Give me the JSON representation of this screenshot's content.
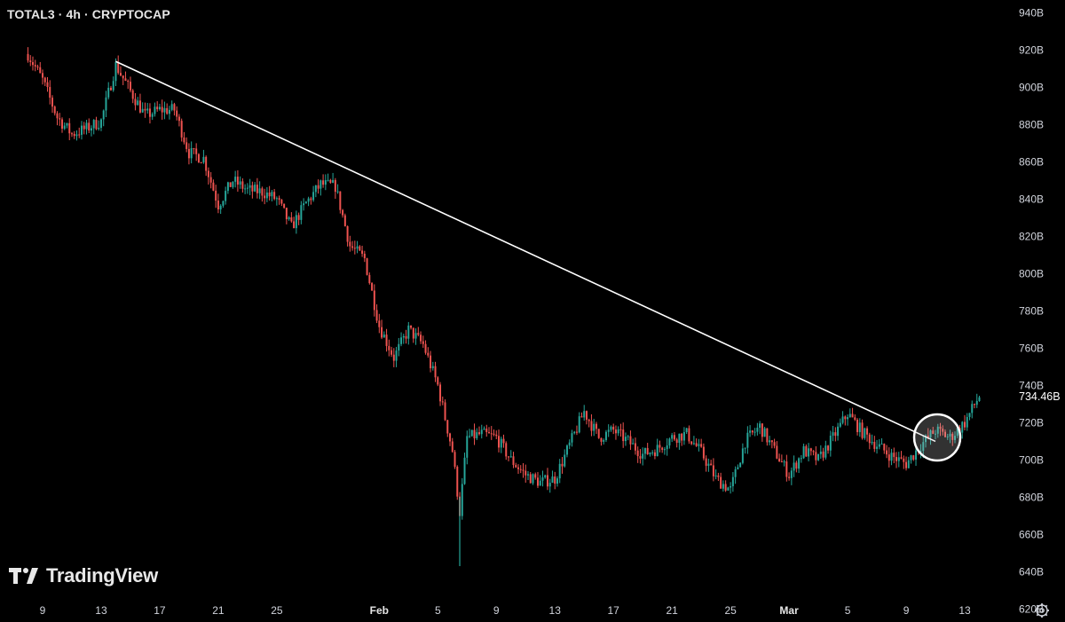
{
  "header": {
    "title": "TOTAL3 · 4h · CRYPTOCAP"
  },
  "brand": {
    "name": "TradingView"
  },
  "icons": {
    "brand": "tradingview-logo-icon",
    "settings": "gear-icon"
  },
  "colors": {
    "background": "#000000",
    "up": "#26a69a",
    "down": "#ef5350",
    "trendline": "#ffffff",
    "axis_text": "#d1d4dc"
  },
  "chart_data": {
    "type": "candlestick",
    "title": "TOTAL3 · 4h · CRYPTOCAP",
    "yticks": [
      "620B",
      "640B",
      "660B",
      "680B",
      "700B",
      "720B",
      "740B",
      "760B",
      "780B",
      "800B",
      "820B",
      "840B",
      "860B",
      "880B",
      "900B",
      "920B",
      "940B"
    ],
    "ytick_values": [
      620,
      640,
      660,
      680,
      700,
      720,
      740,
      760,
      780,
      800,
      820,
      840,
      860,
      880,
      900,
      920,
      940
    ],
    "ylim": [
      613,
      947
    ],
    "y_unit": "B",
    "xticks": [
      {
        "label": "9",
        "month": "Jan",
        "day": 9
      },
      {
        "label": "13",
        "month": "Jan",
        "day": 13
      },
      {
        "label": "17",
        "month": "Jan",
        "day": 17
      },
      {
        "label": "21",
        "month": "Jan",
        "day": 21
      },
      {
        "label": "25",
        "month": "Jan",
        "day": 25
      },
      {
        "label": "Feb",
        "month": "Feb",
        "day": 1
      },
      {
        "label": "5",
        "month": "Feb",
        "day": 5
      },
      {
        "label": "9",
        "month": "Feb",
        "day": 9
      },
      {
        "label": "13",
        "month": "Feb",
        "day": 13
      },
      {
        "label": "17",
        "month": "Feb",
        "day": 17
      },
      {
        "label": "21",
        "month": "Feb",
        "day": 21
      },
      {
        "label": "25",
        "month": "Feb",
        "day": 25
      },
      {
        "label": "Mar",
        "month": "Mar",
        "day": 1
      },
      {
        "label": "5",
        "month": "Mar",
        "day": 5
      },
      {
        "label": "9",
        "month": "Mar",
        "day": 9
      },
      {
        "label": "13",
        "month": "Mar",
        "day": 13
      }
    ],
    "last_price": {
      "label": "734.46B",
      "value": 734.46
    },
    "close_path": [
      {
        "date": "Jan 8",
        "value": 918
      },
      {
        "date": "Jan 9",
        "value": 904
      },
      {
        "date": "Jan 10",
        "value": 884
      },
      {
        "date": "Jan 11",
        "value": 875
      },
      {
        "date": "Jan 12",
        "value": 878
      },
      {
        "date": "Jan 13",
        "value": 882
      },
      {
        "date": "Jan 14",
        "value": 912
      },
      {
        "date": "Jan 15",
        "value": 898
      },
      {
        "date": "Jan 16",
        "value": 885
      },
      {
        "date": "Jan 17",
        "value": 888
      },
      {
        "date": "Jan 18",
        "value": 888
      },
      {
        "date": "Jan 19",
        "value": 865
      },
      {
        "date": "Jan 20",
        "value": 862
      },
      {
        "date": "Jan 21",
        "value": 837
      },
      {
        "date": "Jan 22",
        "value": 850
      },
      {
        "date": "Jan 23",
        "value": 845
      },
      {
        "date": "Jan 24",
        "value": 844
      },
      {
        "date": "Jan 25",
        "value": 840
      },
      {
        "date": "Jan 26",
        "value": 825
      },
      {
        "date": "Jan 27",
        "value": 838
      },
      {
        "date": "Jan 28",
        "value": 848
      },
      {
        "date": "Jan 29",
        "value": 847
      },
      {
        "date": "Jan 30",
        "value": 815
      },
      {
        "date": "Jan 31",
        "value": 808
      },
      {
        "date": "Feb 1",
        "value": 772
      },
      {
        "date": "Feb 2",
        "value": 755
      },
      {
        "date": "Feb 3",
        "value": 770
      },
      {
        "date": "Feb 4",
        "value": 762
      },
      {
        "date": "Feb 5",
        "value": 740
      },
      {
        "date": "Feb 6",
        "value": 705
      },
      {
        "date": "Feb 6.5",
        "value": 672
      },
      {
        "date": "Feb 7",
        "value": 712
      },
      {
        "date": "Feb 8",
        "value": 714
      },
      {
        "date": "Feb 9",
        "value": 712
      },
      {
        "date": "Feb 10",
        "value": 700
      },
      {
        "date": "Feb 11",
        "value": 692
      },
      {
        "date": "Feb 12",
        "value": 688
      },
      {
        "date": "Feb 13",
        "value": 690
      },
      {
        "date": "Feb 14",
        "value": 708
      },
      {
        "date": "Feb 15",
        "value": 726
      },
      {
        "date": "Feb 16",
        "value": 712
      },
      {
        "date": "Feb 17",
        "value": 716
      },
      {
        "date": "Feb 18",
        "value": 710
      },
      {
        "date": "Feb 19",
        "value": 703
      },
      {
        "date": "Feb 20",
        "value": 706
      },
      {
        "date": "Feb 21",
        "value": 712
      },
      {
        "date": "Feb 22",
        "value": 714
      },
      {
        "date": "Feb 23",
        "value": 704
      },
      {
        "date": "Feb 24",
        "value": 690
      },
      {
        "date": "Feb 25",
        "value": 684
      },
      {
        "date": "Feb 26",
        "value": 710
      },
      {
        "date": "Feb 27",
        "value": 718
      },
      {
        "date": "Feb 28",
        "value": 705
      },
      {
        "date": "Mar 1",
        "value": 692
      },
      {
        "date": "Mar 2",
        "value": 705
      },
      {
        "date": "Mar 3",
        "value": 700
      },
      {
        "date": "Mar 4",
        "value": 712
      },
      {
        "date": "Mar 5",
        "value": 725
      },
      {
        "date": "Mar 6",
        "value": 715
      },
      {
        "date": "Mar 7",
        "value": 708
      },
      {
        "date": "Mar 8",
        "value": 702
      },
      {
        "date": "Mar 9",
        "value": 698
      },
      {
        "date": "Mar 10",
        "value": 708
      },
      {
        "date": "Mar 11",
        "value": 716
      },
      {
        "date": "Mar 12",
        "value": 712
      },
      {
        "date": "Mar 13",
        "value": 720
      },
      {
        "date": "Mar 14",
        "value": 734.46
      }
    ],
    "trendline": {
      "start": {
        "date": "Jan 14",
        "value": 914
      },
      "end": {
        "date": "Mar 11",
        "value": 710
      }
    },
    "annotations": [
      {
        "type": "circle",
        "date": "Mar 11",
        "value": 714
      }
    ],
    "grid": false,
    "legend": "none"
  }
}
